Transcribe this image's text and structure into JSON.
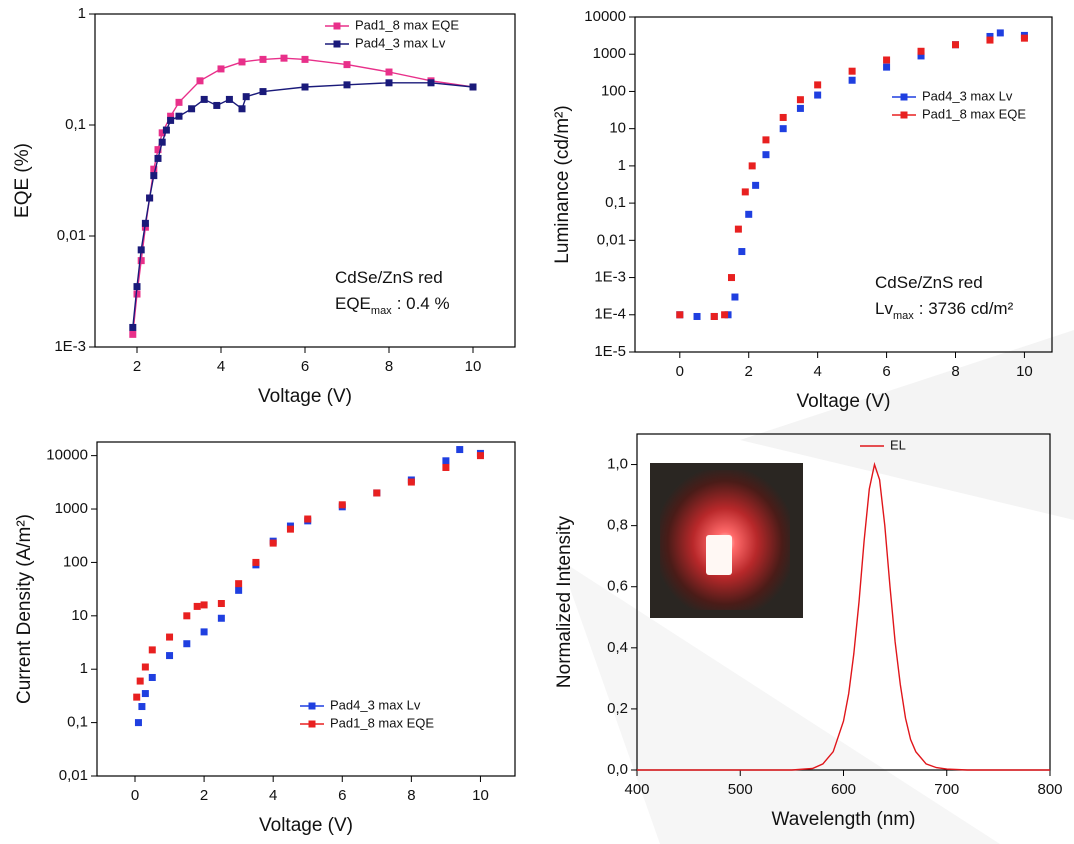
{
  "chart_data": [
    {
      "type": "line",
      "marker": "square",
      "x_label": "Voltage (V)",
      "y_label": "EQE (%)",
      "log_y": true,
      "legend": "upper right",
      "xlim": [
        1,
        11
      ],
      "xticks": [
        2,
        4,
        6,
        8,
        10
      ],
      "ylim": [
        0.001,
        1
      ],
      "yticks": [
        {
          "value": 0.001,
          "label": "1E-3"
        },
        {
          "value": 0.01,
          "label": "0,01"
        },
        {
          "value": 0.1,
          "label": "0,1"
        },
        1
      ],
      "annotations": [
        {
          "text": "CdSe/ZnS red"
        },
        {
          "text": "EQE",
          "subscript": "max",
          "suffix": ": 0.4 %"
        }
      ],
      "series": [
        {
          "name": "Pad1_8 max EQE",
          "color": "#e8308a",
          "x": [
            1.9,
            2.0,
            2.1,
            2.2,
            2.3,
            2.4,
            2.5,
            2.6,
            2.8,
            3.0,
            3.5,
            4.0,
            4.5,
            5.0,
            5.5,
            6.0,
            7.0,
            8.0,
            9.0,
            10.0
          ],
          "values": [
            0.0013,
            0.003,
            0.006,
            0.012,
            0.022,
            0.04,
            0.06,
            0.085,
            0.12,
            0.16,
            0.25,
            0.32,
            0.37,
            0.39,
            0.4,
            0.39,
            0.35,
            0.3,
            0.25,
            0.22
          ]
        },
        {
          "name": "Pad4_3 max Lv",
          "color": "#1a1a7a",
          "x": [
            1.9,
            2.0,
            2.1,
            2.2,
            2.3,
            2.4,
            2.5,
            2.6,
            2.7,
            2.8,
            3.0,
            3.3,
            3.6,
            3.9,
            4.2,
            4.5,
            4.6,
            5.0,
            6.0,
            7.0,
            8.0,
            9.0,
            10.0
          ],
          "values": [
            0.0015,
            0.0035,
            0.0075,
            0.013,
            0.022,
            0.035,
            0.05,
            0.07,
            0.09,
            0.11,
            0.12,
            0.14,
            0.17,
            0.15,
            0.17,
            0.14,
            0.18,
            0.2,
            0.22,
            0.23,
            0.24,
            0.24,
            0.22
          ]
        }
      ]
    },
    {
      "type": "scatter",
      "x_label": "Voltage (V)",
      "y_label": "Luminance (cd/m²)",
      "log_y": true,
      "legend": "center right",
      "xlim": [
        -1.3,
        10.8
      ],
      "xticks": [
        0,
        2,
        4,
        6,
        8,
        10
      ],
      "ylim": [
        1e-05,
        10000
      ],
      "yticks": [
        {
          "value": 1e-05,
          "label": "1E-5"
        },
        {
          "value": 0.0001,
          "label": "1E-4"
        },
        {
          "value": 0.001,
          "label": "1E-3"
        },
        {
          "value": 0.01,
          "label": "0,01"
        },
        {
          "value": 0.1,
          "label": "0,1"
        },
        1,
        10,
        100,
        1000,
        10000
      ],
      "annotations": [
        {
          "text": "CdSe/ZnS red"
        },
        {
          "text": "Lv",
          "subscript": "max",
          "suffix": ": 3736 cd/m²"
        }
      ],
      "series": [
        {
          "name": "Pad4_3 max Lv",
          "color": "#1f3fe0",
          "x": [
            0,
            0.5,
            1.0,
            1.4,
            1.6,
            1.8,
            2.0,
            2.2,
            2.5,
            3.0,
            3.5,
            4.0,
            5.0,
            6.0,
            7.0,
            8.0,
            9.0,
            9.3,
            10.0
          ],
          "values": [
            0.0001,
            9e-05,
            9e-05,
            0.0001,
            0.0003,
            0.005,
            0.05,
            0.3,
            2,
            10,
            35,
            80,
            200,
            450,
            900,
            1800,
            3000,
            3736,
            3200
          ]
        },
        {
          "name": "Pad1_8 max EQE",
          "color": "#e82020",
          "x": [
            0,
            1.0,
            1.3,
            1.5,
            1.7,
            1.9,
            2.1,
            2.5,
            3.0,
            3.5,
            4.0,
            5.0,
            6.0,
            7.0,
            8.0,
            9.0,
            10.0
          ],
          "values": [
            0.0001,
            9e-05,
            0.0001,
            0.001,
            0.02,
            0.2,
            1,
            5,
            20,
            60,
            150,
            350,
            700,
            1200,
            1800,
            2400,
            2700
          ]
        }
      ]
    },
    {
      "type": "scatter",
      "x_label": "Voltage (V)",
      "y_label": "Current Density (A/m²)",
      "log_y": true,
      "legend": "lower right",
      "xlim": [
        -1.1,
        11
      ],
      "xticks": [
        0,
        2,
        4,
        6,
        8,
        10
      ],
      "ylim": [
        0.01,
        18000
      ],
      "yticks": [
        {
          "value": 0.01,
          "label": "0,01"
        },
        {
          "value": 0.1,
          "label": "0,1"
        },
        1,
        10,
        100,
        1000,
        10000
      ],
      "series": [
        {
          "name": "Pad4_3 max Lv",
          "color": "#1f3fe0",
          "x": [
            0.1,
            0.2,
            0.3,
            0.5,
            1.0,
            1.5,
            2.0,
            2.5,
            3.0,
            3.5,
            4.0,
            4.5,
            5.0,
            6.0,
            7.0,
            8.0,
            9.0,
            9.4,
            10.0
          ],
          "values": [
            0.1,
            0.2,
            0.35,
            0.7,
            1.8,
            3,
            5,
            9,
            30,
            90,
            250,
            480,
            600,
            1100,
            2000,
            3500,
            8000,
            13000,
            11000
          ]
        },
        {
          "name": "Pad1_8 max EQE",
          "color": "#e82020",
          "x": [
            0.05,
            0.15,
            0.3,
            0.5,
            1.0,
            1.5,
            1.8,
            2.0,
            2.5,
            3.0,
            3.5,
            4.0,
            4.5,
            5.0,
            6.0,
            7.0,
            8.0,
            9.0,
            10.0
          ],
          "values": [
            0.3,
            0.6,
            1.1,
            2.3,
            4,
            10,
            15,
            16,
            17,
            40,
            100,
            230,
            420,
            650,
            1200,
            2000,
            3200,
            6000,
            10000
          ]
        }
      ]
    },
    {
      "type": "line",
      "x_label": "Wavelength (nm)",
      "y_label": "Normalized Intensity",
      "log_y": false,
      "legend": "upper right",
      "xlim": [
        400,
        800
      ],
      "xticks": [
        400,
        500,
        600,
        700,
        800
      ],
      "ylim": [
        0,
        1.1
      ],
      "yticks": [
        {
          "value": 0,
          "label": "0,0"
        },
        {
          "value": 0.2,
          "label": "0,2"
        },
        {
          "value": 0.4,
          "label": "0,4"
        },
        {
          "value": 0.6,
          "label": "0,6"
        },
        {
          "value": 0.8,
          "label": "0,8"
        },
        {
          "value": 1,
          "label": "1,0"
        }
      ],
      "series": [
        {
          "name": "EL",
          "color": "#e0161b",
          "x": [
            400,
            550,
            570,
            580,
            590,
            600,
            605,
            610,
            615,
            620,
            625,
            630,
            635,
            640,
            645,
            650,
            655,
            660,
            665,
            670,
            680,
            690,
            700,
            720,
            800
          ],
          "values": [
            0,
            0,
            0.005,
            0.02,
            0.06,
            0.16,
            0.25,
            0.38,
            0.55,
            0.75,
            0.92,
            1.0,
            0.95,
            0.8,
            0.6,
            0.42,
            0.28,
            0.17,
            0.1,
            0.06,
            0.02,
            0.008,
            0.003,
            0,
            0
          ]
        }
      ]
    }
  ]
}
